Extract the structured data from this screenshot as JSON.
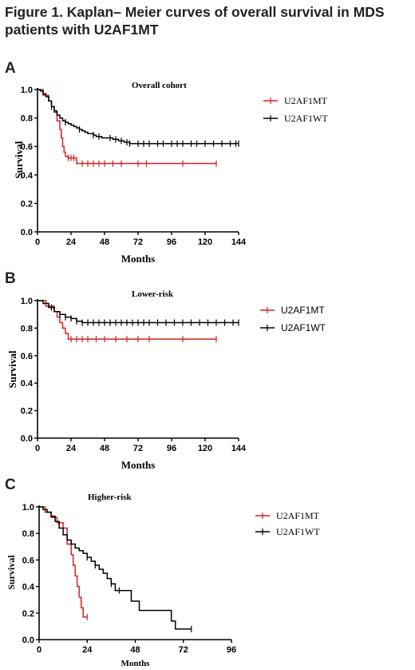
{
  "figure_title": "Figure 1. Kaplan– Meier curves of overall survival in MDS patients with U2AF1MT",
  "colors": {
    "mt": "#d42020",
    "wt": "#000000"
  },
  "chart_data": [
    {
      "type": "line",
      "panel_label": "A",
      "title": "Overall cohort",
      "xlabel": "Months",
      "ylabel": "Survival",
      "xlim": [
        0,
        144
      ],
      "ylim": [
        0,
        1.0
      ],
      "xticks": [
        "0",
        "24",
        "48",
        "72",
        "96",
        "120",
        "144"
      ],
      "yticks": [
        "0.0",
        "0.2",
        "0.4",
        "0.6",
        "0.8",
        "1.0"
      ],
      "legend_position": "right",
      "series": [
        {
          "name": "U2AF1MT",
          "color": "#d42020",
          "x": [
            0,
            4,
            8,
            10,
            12,
            14,
            16,
            17,
            18,
            19,
            20,
            22,
            28,
            128
          ],
          "y": [
            1.0,
            0.96,
            0.92,
            0.88,
            0.84,
            0.78,
            0.72,
            0.66,
            0.6,
            0.56,
            0.53,
            0.52,
            0.48,
            0.48
          ],
          "censor_x": [
            22,
            24,
            26,
            32,
            36,
            40,
            44,
            48,
            54,
            60,
            72,
            78,
            104,
            128
          ]
        },
        {
          "name": "U2AF1WT",
          "color": "#000000",
          "x": [
            0,
            2,
            4,
            6,
            8,
            10,
            12,
            14,
            16,
            18,
            20,
            22,
            24,
            26,
            28,
            30,
            32,
            34,
            36,
            38,
            40,
            42,
            46,
            50,
            54,
            58,
            62,
            66,
            144
          ],
          "y": [
            1.0,
            0.99,
            0.97,
            0.95,
            0.92,
            0.88,
            0.85,
            0.82,
            0.8,
            0.78,
            0.77,
            0.76,
            0.75,
            0.74,
            0.73,
            0.72,
            0.71,
            0.7,
            0.69,
            0.69,
            0.68,
            0.67,
            0.66,
            0.66,
            0.65,
            0.64,
            0.63,
            0.62,
            0.62
          ],
          "censor_x": [
            10,
            20,
            30,
            40,
            44,
            52,
            56,
            60,
            64,
            66,
            72,
            76,
            80,
            86,
            90,
            96,
            100,
            104,
            110,
            114,
            120,
            126,
            132,
            138,
            142,
            144
          ]
        }
      ]
    },
    {
      "type": "line",
      "panel_label": "B",
      "title": "Lower-risk",
      "xlabel": "Months",
      "ylabel": "Survival",
      "xlim": [
        0,
        144
      ],
      "ylim": [
        0,
        1.0
      ],
      "xticks": [
        "0",
        "24",
        "48",
        "72",
        "96",
        "120",
        "144"
      ],
      "yticks": [
        "0.0",
        "0.2",
        "0.4",
        "0.6",
        "0.8",
        "1.0"
      ],
      "legend_position": "right",
      "series": [
        {
          "name": "U2AF1MT",
          "color": "#d42020",
          "x": [
            0,
            6,
            12,
            14,
            16,
            18,
            20,
            22,
            128
          ],
          "y": [
            1.0,
            0.96,
            0.92,
            0.88,
            0.84,
            0.8,
            0.76,
            0.72,
            0.72
          ],
          "censor_x": [
            24,
            28,
            32,
            36,
            42,
            48,
            56,
            64,
            72,
            80,
            104,
            128
          ]
        },
        {
          "name": "U2AF1WT",
          "color": "#000000",
          "x": [
            0,
            4,
            8,
            12,
            16,
            20,
            24,
            28,
            32,
            144
          ],
          "y": [
            1.0,
            0.98,
            0.95,
            0.92,
            0.9,
            0.88,
            0.87,
            0.85,
            0.84,
            0.84
          ],
          "censor_x": [
            10,
            16,
            20,
            24,
            28,
            32,
            36,
            40,
            44,
            48,
            52,
            56,
            60,
            64,
            68,
            72,
            76,
            80,
            86,
            92,
            98,
            104,
            110,
            116,
            122,
            128,
            134,
            140,
            144
          ]
        }
      ]
    },
    {
      "type": "line",
      "panel_label": "C",
      "title": "Higher-risk",
      "xlabel": "Months",
      "ylabel": "Survival",
      "xlim": [
        0,
        96
      ],
      "ylim": [
        0,
        1.0
      ],
      "xticks": [
        "0",
        "24",
        "48",
        "72",
        "96"
      ],
      "yticks": [
        "0.0",
        "0.2",
        "0.4",
        "0.6",
        "0.8",
        "1.0"
      ],
      "legend_position": "right",
      "series": [
        {
          "name": "U2AF1MT",
          "color": "#d42020",
          "x": [
            0,
            3,
            6,
            9,
            12,
            14,
            16,
            17,
            18,
            19,
            20,
            21,
            22,
            24
          ],
          "y": [
            1.0,
            0.96,
            0.92,
            0.88,
            0.84,
            0.72,
            0.64,
            0.56,
            0.48,
            0.4,
            0.32,
            0.24,
            0.17,
            0.17
          ],
          "censor_x": [
            24
          ]
        },
        {
          "name": "U2AF1WT",
          "color": "#000000",
          "x": [
            0,
            2,
            4,
            6,
            8,
            10,
            12,
            14,
            16,
            18,
            20,
            22,
            24,
            26,
            28,
            30,
            32,
            34,
            36,
            38,
            42,
            46,
            50,
            52,
            66,
            68,
            76
          ],
          "y": [
            1.0,
            0.98,
            0.96,
            0.93,
            0.89,
            0.84,
            0.79,
            0.75,
            0.72,
            0.69,
            0.67,
            0.65,
            0.62,
            0.59,
            0.56,
            0.53,
            0.5,
            0.46,
            0.42,
            0.37,
            0.37,
            0.29,
            0.22,
            0.22,
            0.14,
            0.08,
            0.08
          ],
          "censor_x": [
            24,
            28,
            36,
            40,
            76
          ]
        }
      ]
    }
  ]
}
